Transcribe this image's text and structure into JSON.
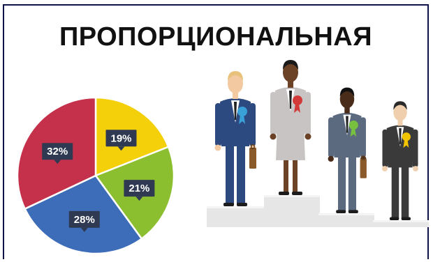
{
  "title": "ПРОПОРЦИОНАЛЬНАЯ",
  "chart_data": {
    "type": "pie",
    "slices": [
      {
        "label": "19%",
        "value": 19,
        "color": "#f4d00b"
      },
      {
        "label": "21%",
        "value": 21,
        "color": "#8cbf2f"
      },
      {
        "label": "28%",
        "value": 28,
        "color": "#3d6cb8"
      },
      {
        "label": "32%",
        "value": 32,
        "color": "#c5304a"
      }
    ],
    "label_bg_color": "#2f3a52"
  },
  "illustration": {
    "podium_color": "#e6e6e6",
    "figures": [
      {
        "suit": "#2c4a80",
        "rosette": "#3aa0d8",
        "skin": "#f2c9a0",
        "hair": "#e8c27a"
      },
      {
        "suit": "#c9c4c4",
        "rosette": "#d23a3a",
        "skin": "#6b4226",
        "hair": "#1a1a1a"
      },
      {
        "suit": "#5c6a80",
        "rosette": "#78c040",
        "skin": "#4a2c1a",
        "hair": "#111111"
      },
      {
        "suit": "#3a3a3a",
        "rosette": "#f2c400",
        "skin": "#f0cfae",
        "hair": "#2a2a2a"
      }
    ]
  }
}
